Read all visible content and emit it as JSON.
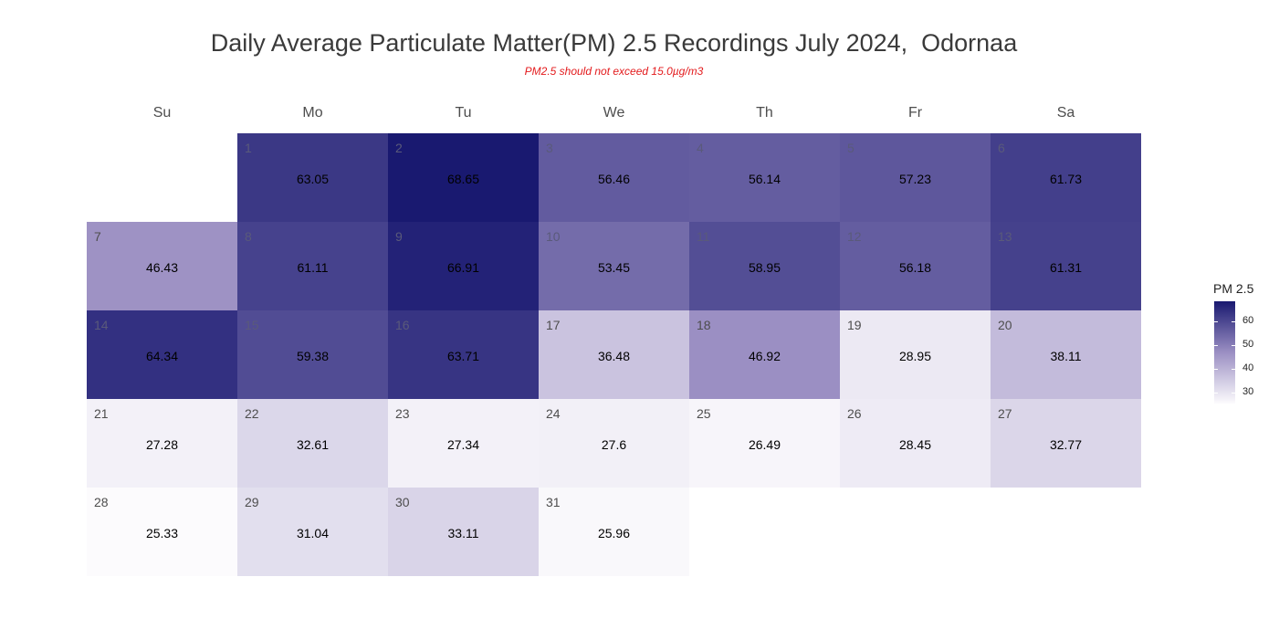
{
  "chart_data": {
    "type": "heatmap",
    "title": "Daily Average Particulate Matter(PM) 2.5 Recordings July 2024,  Odornaa",
    "subtitle": "PM2.5 should not exceed 15.0µg/m3",
    "weekdays": [
      "Su",
      "Mo",
      "Tu",
      "We",
      "Th",
      "Fr",
      "Sa"
    ],
    "first_weekday_index": 1,
    "days": [
      {
        "day": "1",
        "value": 63.05
      },
      {
        "day": "2",
        "value": 68.65
      },
      {
        "day": "3",
        "value": 56.46
      },
      {
        "day": "4",
        "value": 56.14
      },
      {
        "day": "5",
        "value": 57.23
      },
      {
        "day": "6",
        "value": 61.73
      },
      {
        "day": "7",
        "value": 46.43
      },
      {
        "day": "8",
        "value": 61.11
      },
      {
        "day": "9",
        "value": 66.91
      },
      {
        "day": "10",
        "value": 53.45
      },
      {
        "day": "11",
        "value": 58.95
      },
      {
        "day": "12",
        "value": 56.18
      },
      {
        "day": "13",
        "value": 61.31
      },
      {
        "day": "14",
        "value": 64.34
      },
      {
        "day": "15",
        "value": 59.38
      },
      {
        "day": "16",
        "value": 63.71
      },
      {
        "day": "17",
        "value": 36.48
      },
      {
        "day": "18",
        "value": 46.92
      },
      {
        "day": "19",
        "value": 28.95
      },
      {
        "day": "20",
        "value": 38.11
      },
      {
        "day": "21",
        "value": 27.28
      },
      {
        "day": "22",
        "value": 32.61
      },
      {
        "day": "23",
        "value": 27.34
      },
      {
        "day": "24",
        "value": 27.6
      },
      {
        "day": "25",
        "value": 26.49
      },
      {
        "day": "26",
        "value": 28.45
      },
      {
        "day": "27",
        "value": 32.77
      },
      {
        "day": "28",
        "value": 25.33
      },
      {
        "day": "29",
        "value": 31.04
      },
      {
        "day": "30",
        "value": 33.11
      },
      {
        "day": "31",
        "value": 25.96
      }
    ],
    "legend": {
      "title": "PM 2.5",
      "ticks": [
        "30",
        "40",
        "50",
        "60"
      ],
      "range": [
        25.33,
        68.65
      ]
    },
    "colors": {
      "low": "#fcfbfd",
      "mid": "#9b8fc3",
      "high": "#191970"
    }
  }
}
